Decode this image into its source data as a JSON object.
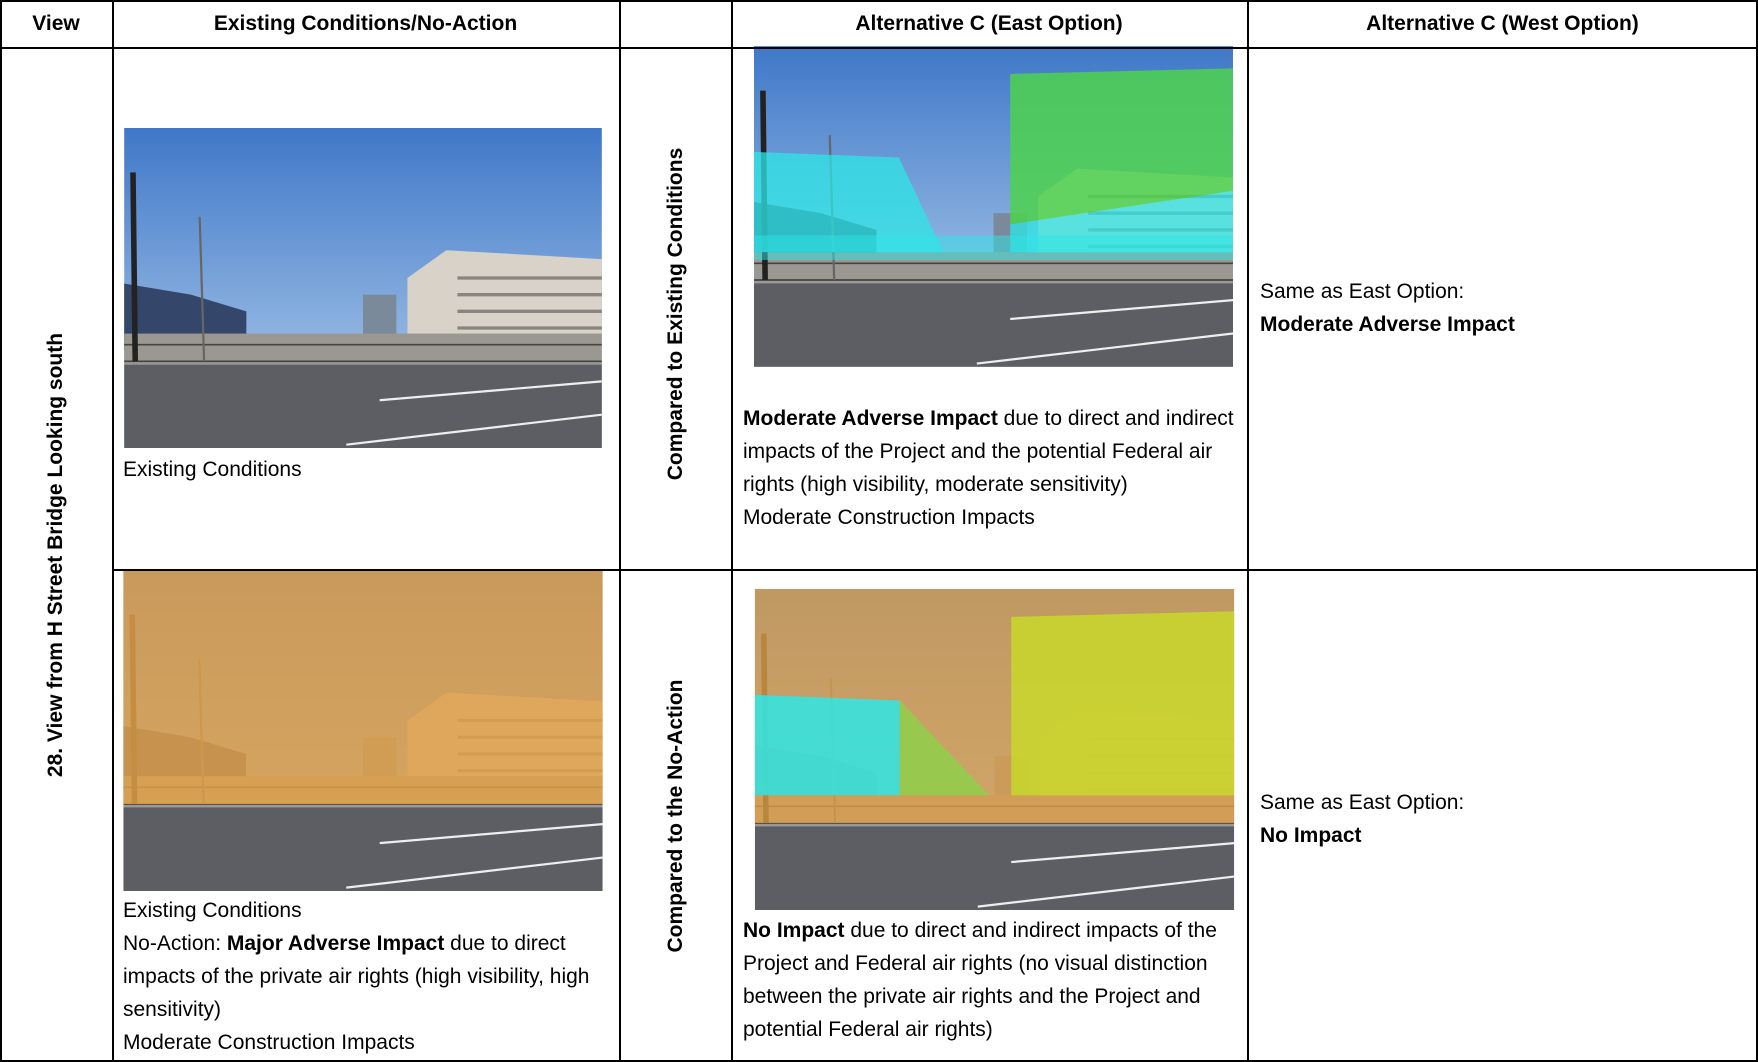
{
  "header": {
    "view": "View",
    "existing": "Existing Conditions/No-Action",
    "east": "Alternative C (East Option)",
    "west": "Alternative C (West Option)"
  },
  "view_label": "28. View from H Street Bridge Looking south",
  "rows": [
    {
      "comparison": "Compared to Existing Conditions",
      "existing": [
        [
          {
            "text": "Existing Conditions"
          }
        ]
      ],
      "east": [
        [
          {
            "text": "Moderate Adverse Impact",
            "bold": true
          },
          {
            "text": " due to direct and indirect impacts of the Project and the potential Federal air rights (high visibility, moderate sensitivity)"
          }
        ],
        [
          {
            "text": "Moderate Construction Impacts"
          }
        ]
      ],
      "west": [
        [
          {
            "text": "Same as East Option:"
          }
        ],
        [
          {
            "text": "Moderate Adverse Impact",
            "bold": true
          }
        ]
      ]
    },
    {
      "comparison": "Compared to the No-Action",
      "existing": [
        [
          {
            "text": "Existing Conditions"
          }
        ],
        [
          {
            "text": "No-Action: "
          },
          {
            "text": "Major Adverse Impact",
            "bold": true
          },
          {
            "text": " due to direct impacts of the private air rights (high visibility, high sensitivity)"
          }
        ],
        [
          {
            "text": "Moderate Construction Impacts"
          }
        ]
      ],
      "east": [
        [
          {
            "text": "No Impact",
            "bold": true
          },
          {
            "text": " due to direct and indirect impacts of the Project and Federal air rights (no visual distinction between the private air rights and the Project and potential Federal air rights)"
          }
        ]
      ],
      "west": [
        [
          {
            "text": "Same as East Option:"
          }
        ],
        [
          {
            "text": "No Impact",
            "bold": true
          }
        ]
      ]
    }
  ]
}
